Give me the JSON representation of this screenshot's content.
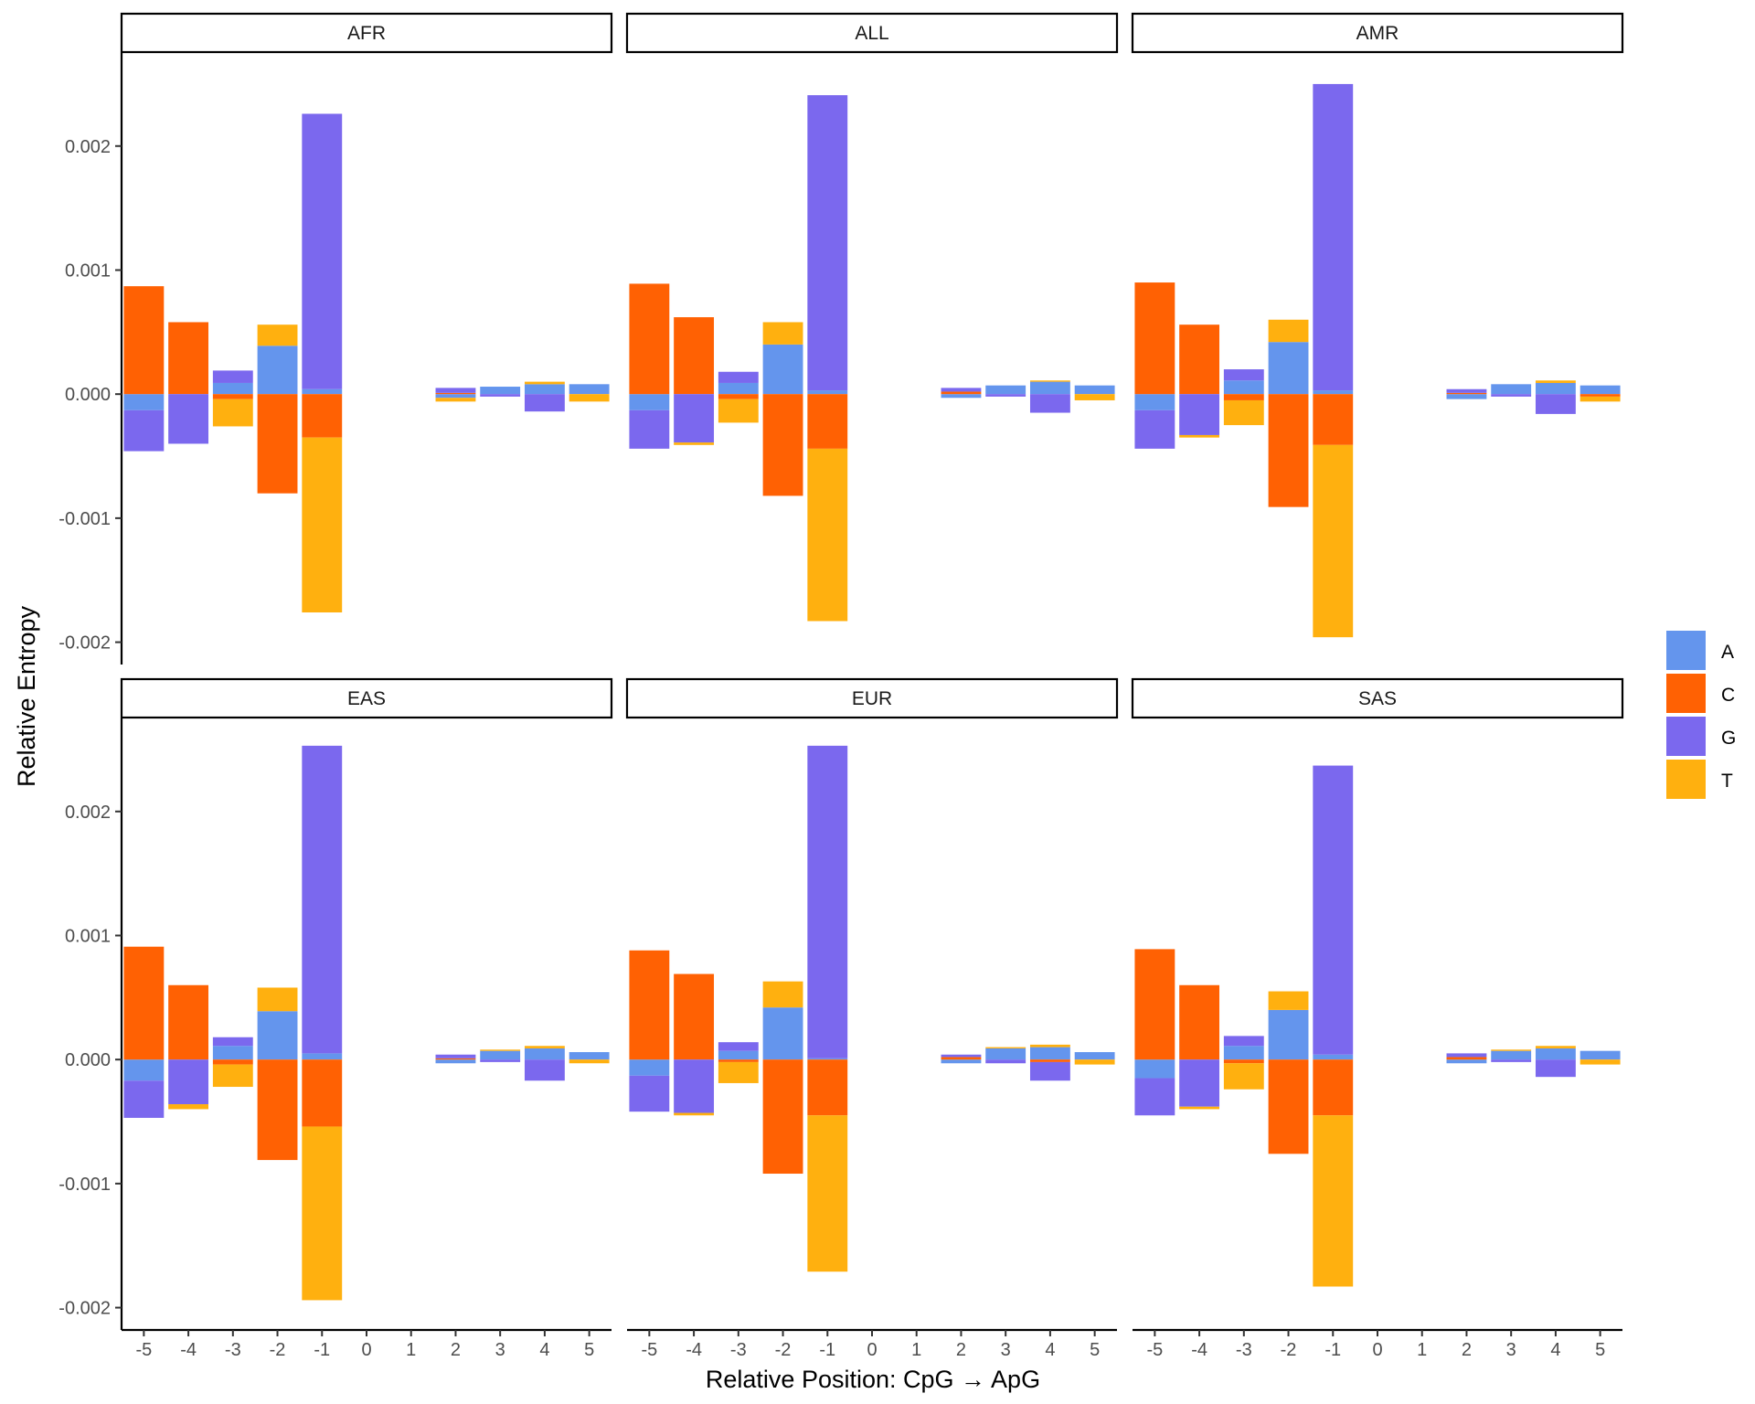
{
  "chart_data": {
    "type": "bar",
    "stacked": true,
    "faceted": true,
    "xlabel": "Relative Position: CpG → ApG",
    "ylabel": "Relative Entropy",
    "ylim": [
      -0.00218,
      0.00275
    ],
    "yticks": [
      -0.002,
      -0.001,
      0.0,
      0.001,
      0.002
    ],
    "ytick_labels": [
      "-0.002",
      "-0.001",
      "0.000",
      "0.001",
      "0.002"
    ],
    "x": [
      -5,
      -4,
      -3,
      -2,
      -1,
      0,
      1,
      2,
      3,
      4,
      5
    ],
    "grid": false,
    "legend_position": "right",
    "legend": [
      {
        "name": "A",
        "color": "#6495ED"
      },
      {
        "name": "C",
        "color": "#FF6103"
      },
      {
        "name": "G",
        "color": "#7B68EE"
      },
      {
        "name": "T",
        "color": "#FFB00F"
      }
    ],
    "facets": [
      {
        "label": "AFR",
        "bars": [
          {
            "x": -5,
            "A": -0.00013,
            "C": 0.00087,
            "G": -0.00033,
            "T": 0
          },
          {
            "x": -4,
            "A": 0,
            "C": 0.00058,
            "G": -0.0004,
            "T": 0
          },
          {
            "x": -3,
            "A": 9e-05,
            "C": -4e-05,
            "G": 0.0001,
            "T": -0.00022
          },
          {
            "x": -2,
            "A": 0.00039,
            "C": -0.0008,
            "G": 0,
            "T": 0.00017
          },
          {
            "x": -1,
            "A": 4e-05,
            "C": -0.00035,
            "G": 0.00222,
            "T": -0.00141
          },
          {
            "x": 2,
            "A": -3e-05,
            "C": 1e-05,
            "G": 4e-05,
            "T": -3e-05
          },
          {
            "x": 3,
            "A": 6e-05,
            "C": 0,
            "G": -2e-05,
            "T": 0
          },
          {
            "x": 4,
            "A": 8e-05,
            "C": 0,
            "G": -0.00014,
            "T": 2e-05
          },
          {
            "x": 5,
            "A": 8e-05,
            "C": 0,
            "G": 0,
            "T": -6e-05
          }
        ]
      },
      {
        "label": "ALL",
        "bars": [
          {
            "x": -5,
            "A": -0.00013,
            "C": 0.00089,
            "G": -0.00031,
            "T": 0
          },
          {
            "x": -4,
            "A": 0,
            "C": 0.00062,
            "G": -0.00039,
            "T": -2e-05
          },
          {
            "x": -3,
            "A": 9e-05,
            "C": -4e-05,
            "G": 9e-05,
            "T": -0.00019
          },
          {
            "x": -2,
            "A": 0.0004,
            "C": -0.00082,
            "G": 0,
            "T": 0.00018
          },
          {
            "x": -1,
            "A": 3e-05,
            "C": -0.00044,
            "G": 0.00238,
            "T": -0.00139
          },
          {
            "x": 2,
            "A": -3e-05,
            "C": 2e-05,
            "G": 3e-05,
            "T": 0
          },
          {
            "x": 3,
            "A": 7e-05,
            "C": 0,
            "G": -2e-05,
            "T": 0
          },
          {
            "x": 4,
            "A": 0.0001,
            "C": 0,
            "G": -0.00015,
            "T": 1e-05
          },
          {
            "x": 5,
            "A": 7e-05,
            "C": 0,
            "G": 0,
            "T": -5e-05
          }
        ]
      },
      {
        "label": "AMR",
        "bars": [
          {
            "x": -5,
            "A": -0.00013,
            "C": 0.0009,
            "G": -0.00031,
            "T": 0
          },
          {
            "x": -4,
            "A": 0,
            "C": 0.00056,
            "G": -0.00033,
            "T": -2e-05
          },
          {
            "x": -3,
            "A": 0.00011,
            "C": -5e-05,
            "G": 9e-05,
            "T": -0.0002
          },
          {
            "x": -2,
            "A": 0.00042,
            "C": -0.00091,
            "G": 0,
            "T": 0.00018
          },
          {
            "x": -1,
            "A": 3e-05,
            "C": -0.00041,
            "G": 0.00247,
            "T": -0.00155
          },
          {
            "x": 2,
            "A": -4e-05,
            "C": 1e-05,
            "G": 3e-05,
            "T": 0
          },
          {
            "x": 3,
            "A": 8e-05,
            "C": 0,
            "G": -2e-05,
            "T": 0
          },
          {
            "x": 4,
            "A": 9e-05,
            "C": 0,
            "G": -0.00016,
            "T": 2e-05
          },
          {
            "x": 5,
            "A": 7e-05,
            "C": -2e-05,
            "G": 0,
            "T": -4e-05
          }
        ]
      },
      {
        "label": "EAS",
        "bars": [
          {
            "x": -5,
            "A": -0.00017,
            "C": 0.00091,
            "G": -0.0003,
            "T": 0
          },
          {
            "x": -4,
            "A": 0,
            "C": 0.0006,
            "G": -0.00036,
            "T": -4e-05
          },
          {
            "x": -3,
            "A": 0.00011,
            "C": -4e-05,
            "G": 7e-05,
            "T": -0.00018
          },
          {
            "x": -2,
            "A": 0.00039,
            "C": -0.00081,
            "G": 0,
            "T": 0.00019
          },
          {
            "x": -1,
            "A": 5e-05,
            "C": -0.00054,
            "G": 0.00248,
            "T": -0.0014
          },
          {
            "x": 2,
            "A": -3e-05,
            "C": 1e-05,
            "G": 3e-05,
            "T": 0
          },
          {
            "x": 3,
            "A": 7e-05,
            "C": 0,
            "G": -2e-05,
            "T": 1e-05
          },
          {
            "x": 4,
            "A": 9e-05,
            "C": 0,
            "G": -0.00017,
            "T": 2e-05
          },
          {
            "x": 5,
            "A": 6e-05,
            "C": 0,
            "G": 0,
            "T": -3e-05
          }
        ]
      },
      {
        "label": "EUR",
        "bars": [
          {
            "x": -5,
            "A": -0.00013,
            "C": 0.00088,
            "G": -0.00029,
            "T": 0
          },
          {
            "x": -4,
            "A": 0,
            "C": 0.00069,
            "G": -0.00043,
            "T": -2e-05
          },
          {
            "x": -3,
            "A": 7e-05,
            "C": -2e-05,
            "G": 7e-05,
            "T": -0.00017
          },
          {
            "x": -2,
            "A": 0.00042,
            "C": -0.00092,
            "G": 0,
            "T": 0.00021
          },
          {
            "x": -1,
            "A": 1e-05,
            "C": -0.00045,
            "G": 0.00252,
            "T": -0.00126
          },
          {
            "x": 2,
            "A": -3e-05,
            "C": 2e-05,
            "G": 2e-05,
            "T": 0
          },
          {
            "x": 3,
            "A": 9e-05,
            "C": 0,
            "G": -3e-05,
            "T": 1e-05
          },
          {
            "x": 4,
            "A": 0.0001,
            "C": -2e-05,
            "G": -0.00015,
            "T": 2e-05
          },
          {
            "x": 5,
            "A": 6e-05,
            "C": 0,
            "G": 0,
            "T": -4e-05
          }
        ]
      },
      {
        "label": "SAS",
        "bars": [
          {
            "x": -5,
            "A": -0.00015,
            "C": 0.00089,
            "G": -0.0003,
            "T": 0
          },
          {
            "x": -4,
            "A": 0,
            "C": 0.0006,
            "G": -0.00038,
            "T": -2e-05
          },
          {
            "x": -3,
            "A": 0.00011,
            "C": -3e-05,
            "G": 8e-05,
            "T": -0.00021
          },
          {
            "x": -2,
            "A": 0.0004,
            "C": -0.00076,
            "G": 0,
            "T": 0.00015
          },
          {
            "x": -1,
            "A": 4e-05,
            "C": -0.00045,
            "G": 0.00233,
            "T": -0.00138
          },
          {
            "x": 2,
            "A": -3e-05,
            "C": 2e-05,
            "G": 3e-05,
            "T": 0
          },
          {
            "x": 3,
            "A": 7e-05,
            "C": 0,
            "G": -2e-05,
            "T": 1e-05
          },
          {
            "x": 4,
            "A": 9e-05,
            "C": 0,
            "G": -0.00014,
            "T": 2e-05
          },
          {
            "x": 5,
            "A": 7e-05,
            "C": 0,
            "G": 0,
            "T": -4e-05
          }
        ]
      }
    ]
  }
}
